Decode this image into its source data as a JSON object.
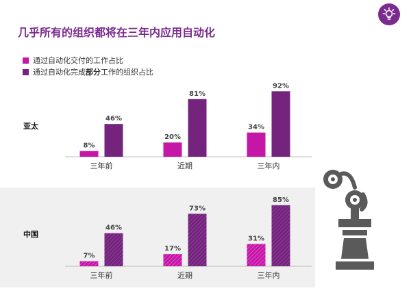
{
  "title": "几乎所有的组织都将在三年内应用自动化",
  "icon": "lightbulb-icon",
  "legend": [
    {
      "text_before": "通过自动化交付的工作占比",
      "bold": "",
      "text_after": "",
      "color": "#c616a8"
    },
    {
      "text_before": "通过自动化完成",
      "bold": "部分",
      "text_after": "工作的组织占比",
      "color": "#74247d"
    }
  ],
  "colors": {
    "accent": "#7b2a8f",
    "series1": "#c616a8",
    "series2": "#74247d",
    "band": "#f0f0f0",
    "robot": "#5a5a5a"
  },
  "chart_data": [
    {
      "type": "bar",
      "region": "亚太",
      "categories": [
        "三年前",
        "近期",
        "三年内"
      ],
      "series": [
        {
          "values": [
            8,
            20,
            34
          ],
          "labels": [
            "8%",
            "20%",
            "34%"
          ]
        },
        {
          "values": [
            46,
            81,
            92
          ],
          "labels": [
            "46%",
            "81%",
            "92%"
          ]
        }
      ],
      "ylim": [
        0,
        100
      ],
      "hatched": false
    },
    {
      "type": "bar",
      "region": "中国",
      "categories": [
        "三年前",
        "近期",
        "三年内"
      ],
      "series": [
        {
          "values": [
            7,
            17,
            31
          ],
          "labels": [
            "7%",
            "17%",
            "31%"
          ]
        },
        {
          "values": [
            46,
            73,
            85
          ],
          "labels": [
            "46%",
            "73%",
            "85%"
          ]
        }
      ],
      "ylim": [
        0,
        100
      ],
      "hatched": true
    }
  ]
}
